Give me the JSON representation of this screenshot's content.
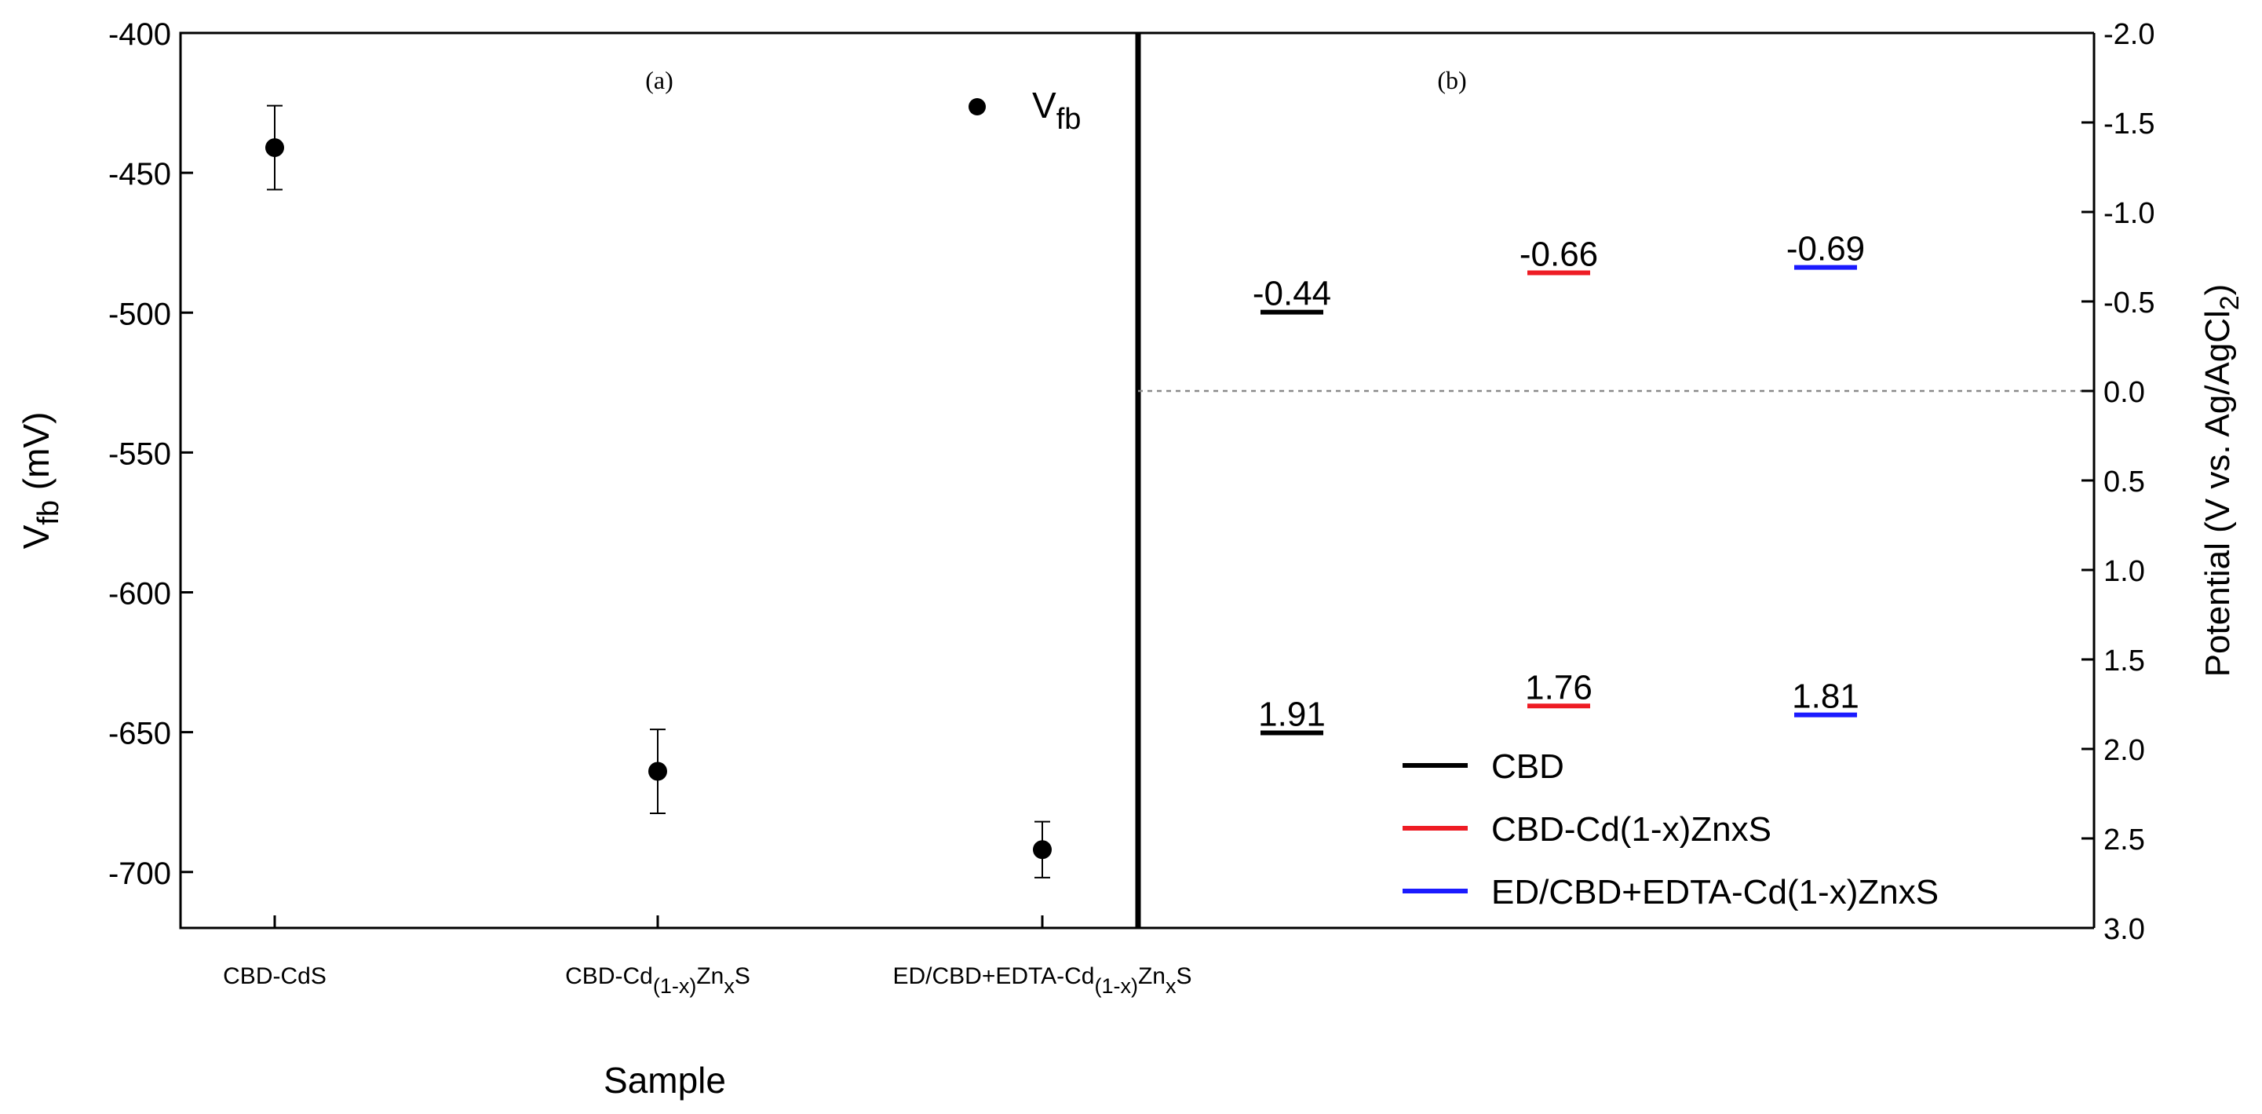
{
  "chart_data": [
    {
      "type": "scatter",
      "panel_label": "(a)",
      "categories": [
        "CBD-CdS",
        "CBD-Cd(1-x)ZnxS",
        "ED/CBD+EDTA-Cd(1-x)ZnxS"
      ],
      "category_labels": [
        {
          "parts": [
            {
              "t": "CBD-CdS",
              "sub": false
            }
          ]
        },
        {
          "parts": [
            {
              "t": "CBD-Cd",
              "sub": false
            },
            {
              "t": "(1-x)",
              "sub": true
            },
            {
              "t": "Zn",
              "sub": false
            },
            {
              "t": "x",
              "sub": true
            },
            {
              "t": "S",
              "sub": false
            }
          ]
        },
        {
          "parts": [
            {
              "t": "ED/CBD+EDTA-Cd",
              "sub": false
            },
            {
              "t": "(1-x)",
              "sub": true
            },
            {
              "t": "Zn",
              "sub": false
            },
            {
              "t": "x",
              "sub": true
            },
            {
              "t": "S",
              "sub": false
            }
          ]
        }
      ],
      "series": [
        {
          "name": "Vfb",
          "values": [
            -441,
            -664,
            -692
          ],
          "errors": [
            15,
            15,
            10
          ]
        }
      ],
      "legend": {
        "label_main": "V",
        "label_sub": "fb",
        "position": "top-right"
      },
      "xlabel": "Sample",
      "ylabel_main": "V",
      "ylabel_sub": "fb",
      "ylabel_unit": " (mV)",
      "ylim": [
        -720,
        -400
      ],
      "y_ticks": [
        -400,
        -450,
        -500,
        -550,
        -600,
        -650,
        -700
      ]
    },
    {
      "type": "band-levels",
      "panel_label": "(b)",
      "ylabel_prefix": "Potential (V vs. Ag/AgCl",
      "ylabel_sub": "2",
      "ylabel_suffix": ")",
      "ylim": [
        -2.0,
        3.0
      ],
      "y_inverted": true,
      "y_ticks": [
        -2.0,
        -1.5,
        -1.0,
        -0.5,
        0.0,
        0.5,
        1.0,
        1.5,
        2.0,
        2.5,
        3.0
      ],
      "y_tick_labels": [
        "-2.0",
        "-1.5",
        "-1.0",
        "-0.5",
        "0.0",
        "0.5",
        "1.0",
        "1.5",
        "2.0",
        "2.5",
        "3.0"
      ],
      "reference_line": 0.0,
      "series": [
        {
          "name": "CBD",
          "color": "#000000",
          "levels": [
            {
              "value": -0.44,
              "label": "-0.44"
            },
            {
              "value": 1.91,
              "label": "1.91"
            }
          ]
        },
        {
          "name": "CBD-Cd(1-x)ZnxS",
          "color": "#ee1c24",
          "levels": [
            {
              "value": -0.66,
              "label": "-0.66"
            },
            {
              "value": 1.76,
              "label": "1.76"
            }
          ]
        },
        {
          "name": "ED/CBD+EDTA-Cd(1-x)ZnxS",
          "color": "#1b1bff",
          "levels": [
            {
              "value": -0.69,
              "label": "-0.69"
            },
            {
              "value": 1.81,
              "label": "1.81"
            }
          ]
        }
      ],
      "legend_position": "bottom-right"
    }
  ]
}
